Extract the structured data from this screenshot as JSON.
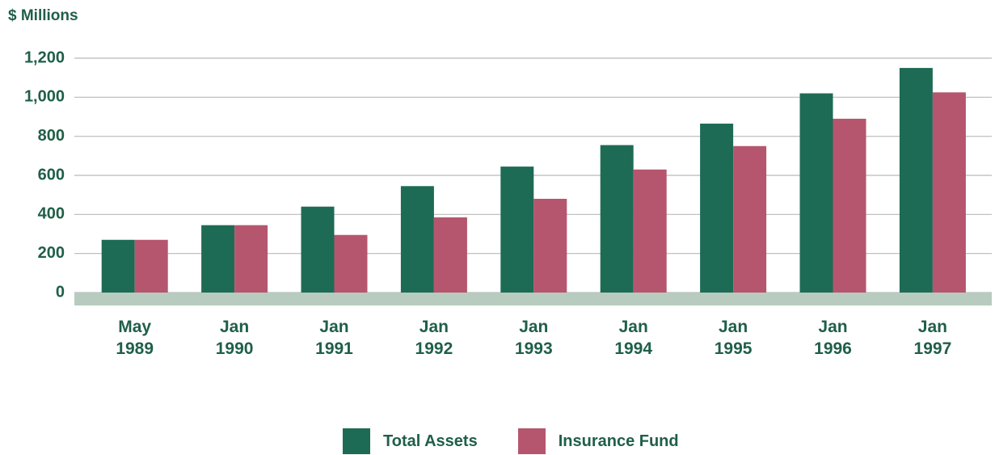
{
  "chart_data": {
    "type": "bar",
    "y_label": "$ Millions",
    "categories": [
      "May 1989",
      "Jan 1990",
      "Jan 1991",
      "Jan 1992",
      "Jan 1993",
      "Jan 1994",
      "Jan 1995",
      "Jan 1996",
      "Jan 1997"
    ],
    "series": [
      {
        "name": "Total Assets",
        "color": "#1e6b55",
        "values": [
          270,
          345,
          440,
          545,
          645,
          755,
          865,
          1020,
          1150
        ]
      },
      {
        "name": "Insurance Fund",
        "color": "#b5566e",
        "values": [
          270,
          345,
          295,
          385,
          480,
          630,
          750,
          890,
          1025
        ]
      }
    ],
    "ylim": [
      0,
      1200
    ],
    "yticks": [
      0,
      200,
      400,
      600,
      800,
      {
        "value": 1000,
        "label": "1,000"
      },
      {
        "value": 1200,
        "label": "1,200"
      }
    ],
    "grid": true
  }
}
